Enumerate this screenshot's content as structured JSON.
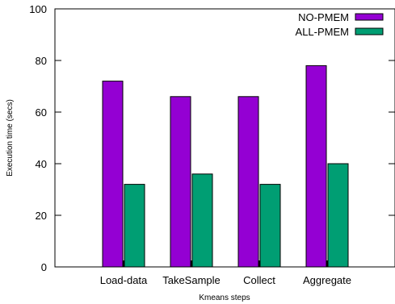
{
  "chart_data": {
    "type": "bar",
    "xlabel": "Kmeans steps",
    "ylabel": "Execution time (secs)",
    "ylim": [
      0,
      100
    ],
    "yticks": [
      0,
      20,
      40,
      60,
      80,
      100
    ],
    "grid": false,
    "legend_position": "top-right",
    "categories": [
      "Load-data",
      "TakeSample",
      "Collect",
      "Aggregate"
    ],
    "series": [
      {
        "name": "NO-PMEM",
        "color": "#9400d3",
        "values": [
          72,
          66,
          66,
          78
        ]
      },
      {
        "name": "ALL-PMEM",
        "color": "#009e73",
        "values": [
          32,
          36,
          32,
          40
        ]
      }
    ]
  }
}
